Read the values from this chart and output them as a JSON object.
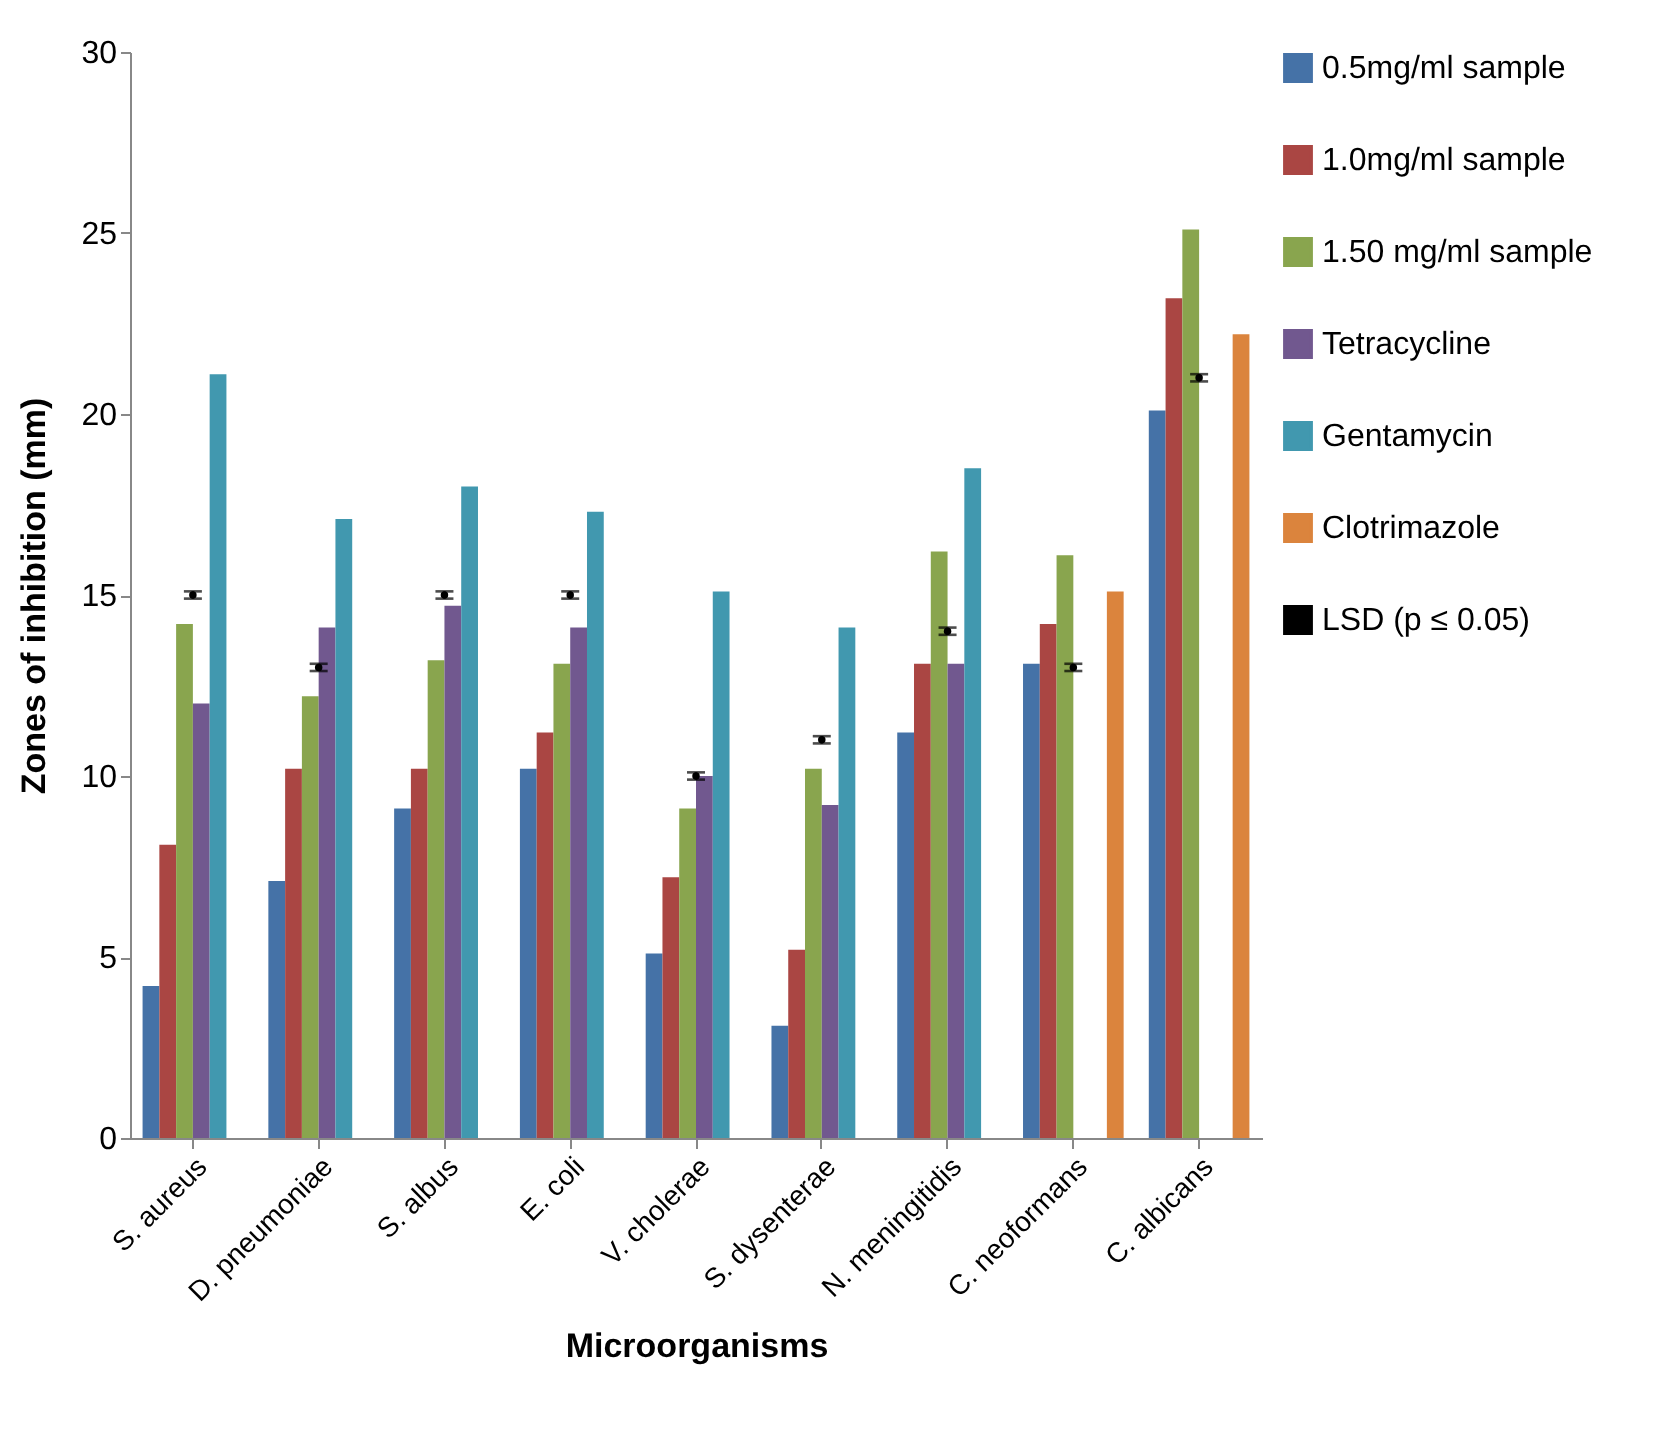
{
  "chart_data": {
    "type": "bar",
    "xlabel": "Microorganisms",
    "ylabel": "Zones of inhibition (mm)",
    "categories": [
      "S. aureus",
      "D. pneumoniae",
      "S. albus",
      "E. coli",
      "V. cholerae",
      "S. dysenterae",
      "N. meningitidis",
      "C. neoformans",
      "C. albicans"
    ],
    "series": [
      {
        "name": "0.5mg/ml sample",
        "color": "#4572a7",
        "values": [
          4.2,
          7.1,
          9.1,
          10.2,
          5.1,
          3.1,
          11.2,
          13.1,
          20.1
        ]
      },
      {
        "name": "1.0mg/ml sample",
        "color": "#aa4643",
        "values": [
          8.1,
          10.2,
          10.2,
          11.2,
          7.2,
          5.2,
          13.1,
          14.2,
          23.2
        ]
      },
      {
        "name": "1.50 mg/ml sample",
        "color": "#89a54e",
        "values": [
          14.2,
          12.2,
          13.2,
          13.1,
          9.1,
          10.2,
          16.2,
          16.1,
          25.1
        ]
      },
      {
        "name": "Tetracycline",
        "color": "#71588f",
        "values": [
          12.0,
          14.1,
          14.7,
          14.1,
          10.0,
          9.2,
          13.1,
          null,
          null
        ]
      },
      {
        "name": "Gentamycin",
        "color": "#4198af",
        "values": [
          21.1,
          17.1,
          18.0,
          17.3,
          15.1,
          14.1,
          18.5,
          null,
          null
        ]
      },
      {
        "name": "Clotrimazole",
        "color": "#db843d",
        "values": [
          null,
          null,
          null,
          null,
          null,
          null,
          null,
          15.1,
          22.2
        ]
      },
      {
        "name": "LSD (p ≤ 0.05)",
        "type": "scatter",
        "marker": "none",
        "color": "#000000",
        "values": [
          15.0,
          13.0,
          15.0,
          15.0,
          10.0,
          11.0,
          14.0,
          13.0,
          21.0
        ],
        "errors": [
          0.1,
          0.1,
          0.1,
          0.1,
          0.1,
          0.1,
          0.1,
          0.1,
          0.1
        ]
      }
    ],
    "ylim": [
      0,
      30
    ],
    "yticks": [
      0,
      5,
      10,
      15,
      20,
      25,
      30
    ],
    "grid": false,
    "legend": "right"
  }
}
